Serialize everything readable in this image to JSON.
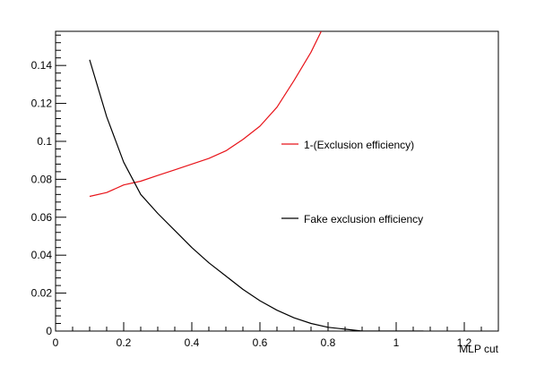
{
  "chart_data": {
    "type": "line",
    "xlabel": "MLP cut",
    "ylabel": "",
    "xlim": [
      0,
      1.3
    ],
    "ylim": [
      0,
      0.158
    ],
    "x_ticks": [
      0,
      0.2,
      0.4,
      0.6,
      0.8,
      1,
      1.2
    ],
    "x_tick_labels": [
      "0",
      "0.2",
      "0.4",
      "0.6",
      "0.8",
      "1",
      "1.2"
    ],
    "y_ticks": [
      0,
      0.02,
      0.04,
      0.06,
      0.08,
      0.1,
      0.12,
      0.14
    ],
    "y_tick_labels": [
      "0",
      "0.02",
      "0.04",
      "0.06",
      "0.08",
      "0.1",
      "0.12",
      "0.14"
    ],
    "grid": false,
    "legend_position": "right",
    "series": [
      {
        "name": "1-(Exclusion efficiency)",
        "color": "#e8141a",
        "x": [
          0.1,
          0.15,
          0.2,
          0.25,
          0.3,
          0.35,
          0.4,
          0.45,
          0.5,
          0.55,
          0.6,
          0.65,
          0.7,
          0.75,
          0.78
        ],
        "y": [
          0.071,
          0.073,
          0.077,
          0.079,
          0.082,
          0.085,
          0.088,
          0.091,
          0.095,
          0.101,
          0.108,
          0.118,
          0.132,
          0.147,
          0.158
        ]
      },
      {
        "name": "Fake exclusion efficiency",
        "color": "#000000",
        "x": [
          0.1,
          0.15,
          0.2,
          0.25,
          0.3,
          0.35,
          0.4,
          0.45,
          0.5,
          0.55,
          0.6,
          0.65,
          0.7,
          0.75,
          0.8,
          0.85,
          0.9,
          0.95,
          1.0,
          1.05,
          1.08
        ],
        "y": [
          0.143,
          0.113,
          0.089,
          0.072,
          0.062,
          0.053,
          0.044,
          0.036,
          0.029,
          0.022,
          0.016,
          0.011,
          0.007,
          0.004,
          0.002,
          0.001,
          0.0,
          0.0,
          0.0,
          0.0,
          0.0
        ]
      }
    ]
  }
}
